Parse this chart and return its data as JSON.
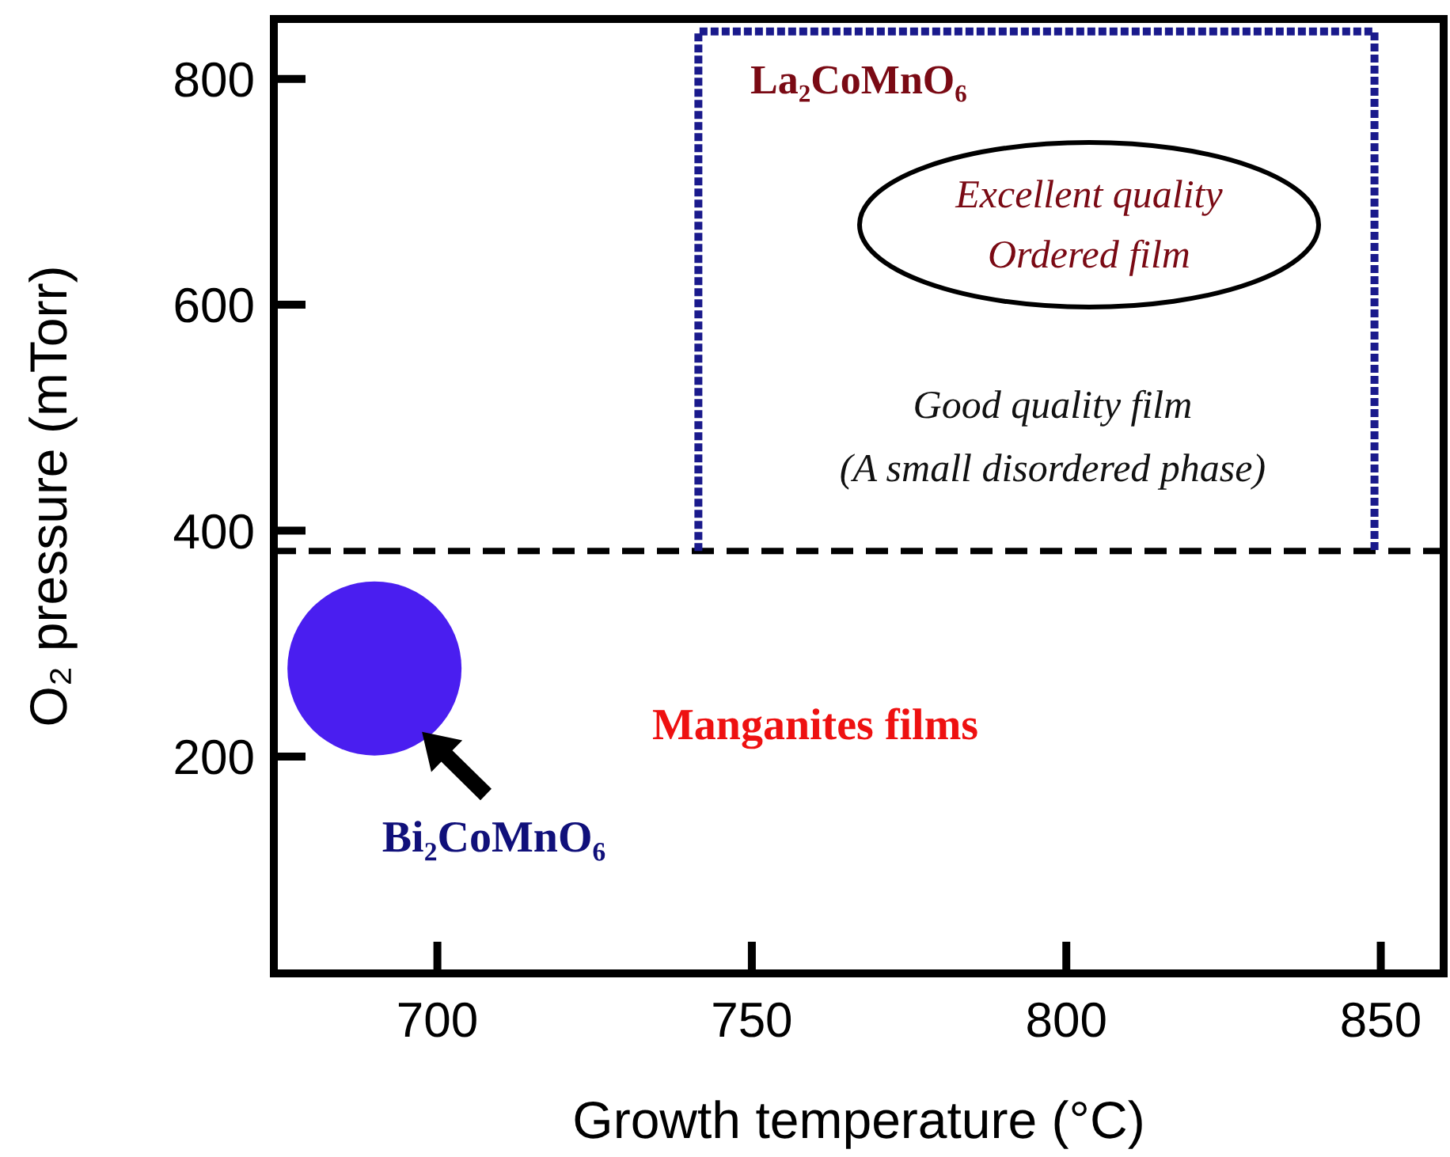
{
  "chart_data": {
    "type": "scatter",
    "xlabel": "Growth temperature (°C)",
    "ylabel": "O₂ pressure (mTorr)",
    "xlim": [
      674,
      860
    ],
    "ylim": [
      8,
      853
    ],
    "xticks": [
      700,
      750,
      800,
      850
    ],
    "yticks": [
      200,
      400,
      600,
      800
    ],
    "grid": false,
    "series": [
      {
        "x": [
          690
        ],
        "values": [
          278
        ],
        "color": "#4a1ef0",
        "marker": "circle"
      },
      {
        "type": "line",
        "x": [
          741.5,
          741.5,
          849,
          849
        ],
        "values": [
          382,
          842,
          842,
          382
        ],
        "color": "#1a1a8c",
        "line_style": "dotted"
      }
    ],
    "ref_lines": [
      {
        "axis": "y",
        "value": 382,
        "color": "#000000",
        "line_style": "dashed"
      }
    ],
    "annotations": [
      "La₂CoMnO₆",
      "Excellent quality",
      "Ordered film",
      "Good quality film",
      "(A small disordered phase)",
      "Manganites films",
      "Bi₂CoMnO₆"
    ]
  }
}
